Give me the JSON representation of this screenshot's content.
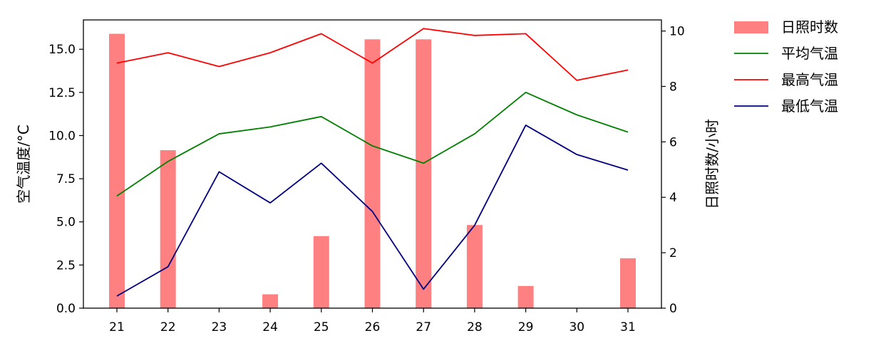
{
  "chart_data": {
    "type": "bar+line",
    "categories": [
      "21",
      "22",
      "23",
      "24",
      "25",
      "26",
      "27",
      "28",
      "29",
      "30",
      "31"
    ],
    "bar_series": {
      "name": "日照时数",
      "axis": "right",
      "color": "#ff8080",
      "values": [
        9.9,
        5.7,
        0,
        0.5,
        2.6,
        9.7,
        9.7,
        3.0,
        0.8,
        0,
        1.8
      ]
    },
    "line_series": [
      {
        "name": "平均气温",
        "axis": "left",
        "color": "#008000",
        "values": [
          6.5,
          8.5,
          10.1,
          10.5,
          11.1,
          9.4,
          8.4,
          10.1,
          12.5,
          11.2,
          10.2
        ]
      },
      {
        "name": "最高气温",
        "axis": "left",
        "color": "#ff0000",
        "values": [
          14.2,
          14.8,
          14.0,
          14.8,
          15.9,
          14.2,
          16.2,
          15.8,
          15.9,
          13.2,
          13.8
        ]
      },
      {
        "name": "最低气温",
        "axis": "left",
        "color": "#000080",
        "values": [
          0.7,
          2.4,
          7.9,
          6.1,
          8.4,
          5.6,
          1.1,
          4.8,
          10.6,
          8.9,
          8.0
        ]
      }
    ],
    "ylabel_left": "空气温度/°C",
    "ylabel_right": "日照时数/小时",
    "ylim_left": [
      0,
      16.7
    ],
    "ylim_right": [
      0,
      10.4
    ],
    "yticks_left": [
      "0.0",
      "2.5",
      "5.0",
      "7.5",
      "10.0",
      "12.5",
      "15.0"
    ],
    "yticks_left_values": [
      0,
      2.5,
      5.0,
      7.5,
      10.0,
      12.5,
      15.0
    ],
    "yticks_right": [
      "0",
      "2",
      "4",
      "6",
      "8",
      "10"
    ],
    "yticks_right_values": [
      0,
      2,
      4,
      6,
      8,
      10
    ],
    "grid": false,
    "legend_position": "outside-top-right"
  }
}
